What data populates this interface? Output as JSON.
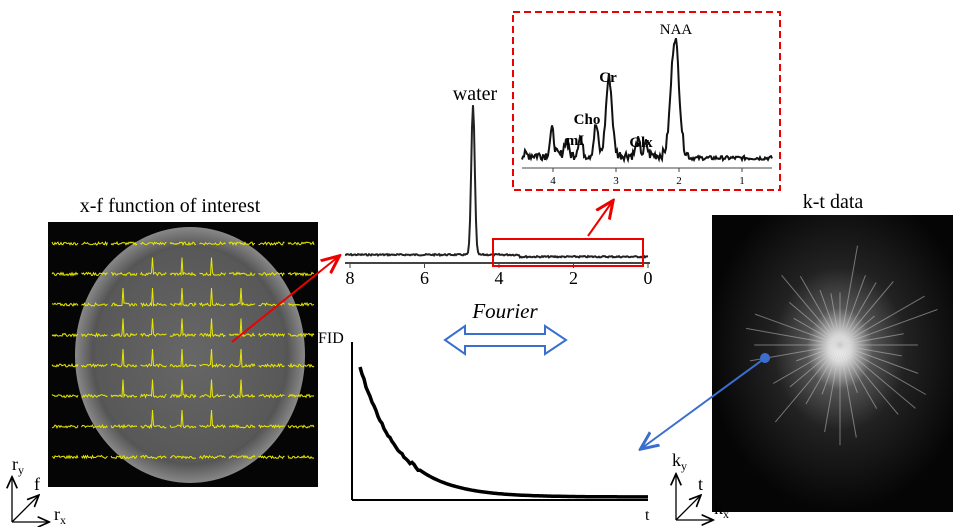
{
  "left_panel": {
    "title": "x-f function of interest",
    "axes": [
      {
        "base": "r",
        "sub": "y"
      },
      {
        "base": "f",
        "sub": ""
      },
      {
        "base": "r",
        "sub": "x"
      }
    ]
  },
  "spectrum": {
    "peak_label": "water",
    "ticks": [
      "8",
      "6",
      "4",
      "2",
      "0"
    ]
  },
  "inset": {
    "ticks": [
      "4",
      "3",
      "2",
      "1"
    ],
    "peaks": [
      "NAA",
      "Cr",
      "Cho",
      "mI",
      "Glx"
    ]
  },
  "transform": {
    "label": "Fourier"
  },
  "fid": {
    "y_label": "FID",
    "x_label": "t"
  },
  "right_panel": {
    "title": "k-t data",
    "axes": [
      {
        "base": "k",
        "sub": "y"
      },
      {
        "base": "t",
        "sub": ""
      },
      {
        "base": "k",
        "sub": "x"
      }
    ]
  }
}
